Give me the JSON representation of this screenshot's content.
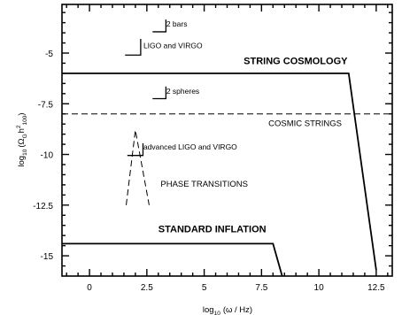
{
  "chart_data": {
    "type": "line",
    "title": "",
    "xlabel": "log",
    "xlabel_sub": "10",
    "xlabel_rest": "(ω / Hz)",
    "ylabel_parts": [
      "log",
      "10",
      "(Ω",
      "G",
      "h",
      "2",
      "100",
      ")"
    ],
    "xlim": [
      -1.2,
      13.2
    ],
    "ylim": [
      -16.0,
      -2.6
    ],
    "xticks": [
      0,
      2.5,
      5,
      7.5,
      10,
      12.5
    ],
    "xtick_labels": [
      "0",
      "2.5",
      "5",
      "7.5",
      "10",
      "12.5"
    ],
    "yticks": [
      -5,
      -7.5,
      -10,
      -12.5,
      -15
    ],
    "ytick_labels": [
      "-5",
      "-7.5",
      "-10",
      "-12.5",
      "-15"
    ],
    "grid": false,
    "legend": "none",
    "series": [
      {
        "label": "STRING COSMOLOGY",
        "style": "solid",
        "stroke_width": 1.8,
        "x": [
          -1.2,
          11.3,
          12.5
        ],
        "y": [
          -6.0,
          -6.0,
          -15.7
        ]
      },
      {
        "label": "STANDARD INFLATION",
        "style": "solid",
        "stroke_width": 1.8,
        "x": [
          -1.2,
          8.0,
          8.4
        ],
        "y": [
          -14.4,
          -14.4,
          -16.0
        ]
      },
      {
        "label": "COSMIC STRINGS",
        "style": "dashed",
        "stroke_width": 1.0,
        "x": [
          -1.2,
          13.2
        ],
        "y": [
          -8.0,
          -8.0
        ]
      },
      {
        "label": "PHASE TRANSITIONS",
        "style": "dashed",
        "stroke_width": 1.0,
        "x": [
          1.6,
          2.0,
          2.6
        ],
        "y": [
          -12.5,
          -8.8,
          -12.5
        ]
      }
    ],
    "detector_markers": [
      {
        "label": "2 bars",
        "x": 3.1,
        "y": -3.95,
        "dx": -0.35,
        "dy": -0.6
      },
      {
        "label": "LIGO and VIRGO",
        "x": 2.0,
        "y": -5.1,
        "dx": -0.45,
        "dy": -0.8
      },
      {
        "label": "2 spheres",
        "x": 3.1,
        "y": -7.25,
        "dx": -0.35,
        "dy": -0.6
      },
      {
        "label": "advanced LIGO and VIRGO",
        "x": 2.1,
        "y": -10.05,
        "dx": -0.45,
        "dy": -0.6
      }
    ],
    "annotations": [
      {
        "text": "STRING COSMOLOGY",
        "x": 11.25,
        "y": -5.55,
        "anchor": "end",
        "cls": "anno-bold"
      },
      {
        "text": "COSMIC STRINGS",
        "x": 11.0,
        "y": -8.6,
        "anchor": "end",
        "cls": "anno"
      },
      {
        "text": "PHASE TRANSITIONS",
        "x": 3.1,
        "y": -11.6,
        "anchor": "start",
        "cls": "anno"
      },
      {
        "text": "STANDARD INFLATION",
        "x": 3.0,
        "y": -13.85,
        "anchor": "start",
        "cls": "anno-bold"
      },
      {
        "text": "2 bars",
        "x": 3.35,
        "y": -3.7,
        "anchor": "start",
        "cls": "anno-small"
      },
      {
        "text": "LIGO and VIRGO",
        "x": 2.35,
        "y": -4.75,
        "anchor": "start",
        "cls": "anno-small"
      },
      {
        "text": "2 spheres",
        "x": 3.35,
        "y": -7.0,
        "anchor": "start",
        "cls": "anno-small"
      },
      {
        "text": "advanced LIGO and VIRGO",
        "x": 2.35,
        "y": -9.75,
        "anchor": "start",
        "cls": "anno-small"
      }
    ]
  }
}
